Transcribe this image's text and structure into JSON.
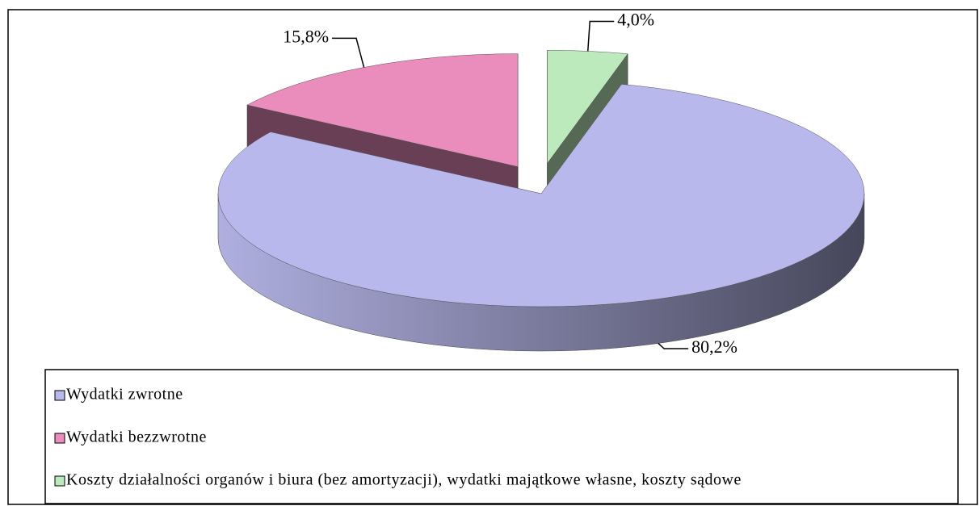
{
  "chart_data": {
    "type": "pie",
    "categories": [
      "Wydatki zwrotne",
      "Wydatki bezzwrotne",
      "Koszty działalności organów i biura (bez amortyzacji), wydatki majątkowe własne, koszty sądowe"
    ],
    "values": [
      80.2,
      15.8,
      4.0
    ],
    "value_labels": [
      "80,2%",
      "15,8%",
      "4,0%"
    ],
    "colors": [
      "#b8b8ec",
      "#ea8cbc",
      "#bdeabd"
    ],
    "legend": "bottom"
  }
}
